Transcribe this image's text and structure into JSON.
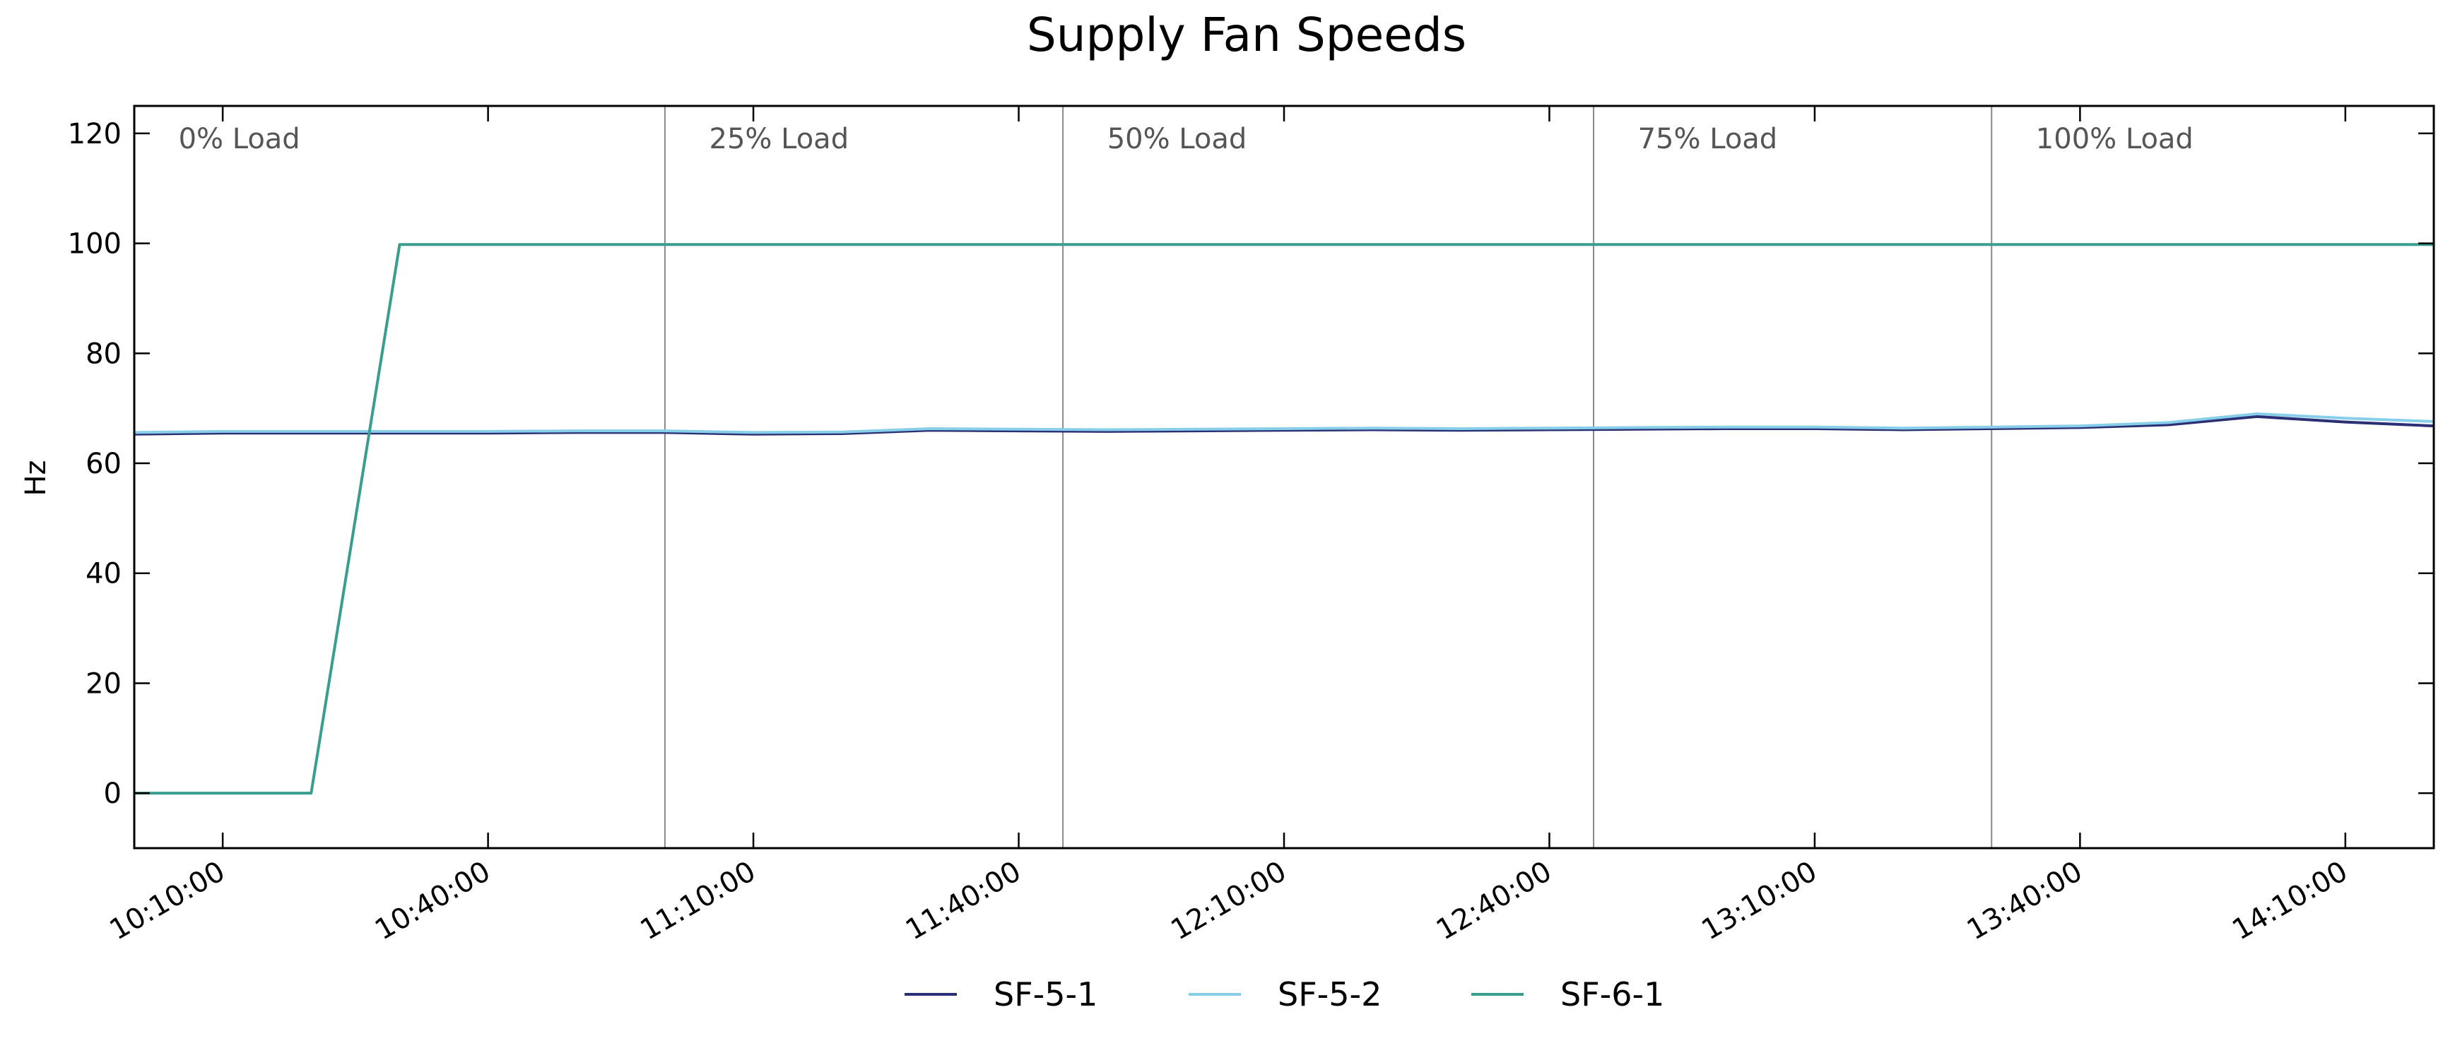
{
  "chart_data": {
    "type": "line",
    "title": "Supply Fan Speeds",
    "xlabel": "",
    "ylabel": "Hz",
    "x_tick_labels": [
      "10:10:00",
      "10:40:00",
      "11:10:00",
      "11:40:00",
      "12:10:00",
      "12:40:00",
      "13:10:00",
      "13:40:00",
      "14:10:00"
    ],
    "xlim": [
      "10:00:00",
      "14:20:00"
    ],
    "ylim": [
      -10,
      125
    ],
    "y_ticks": [
      0,
      20,
      40,
      60,
      80,
      100,
      120
    ],
    "grid": false,
    "legend_position": "bottom-center",
    "load_dividers": [
      "11:00:00",
      "11:45:00",
      "12:45:00",
      "13:30:00"
    ],
    "load_labels": [
      {
        "text": "0% Load",
        "x": "10:05:00"
      },
      {
        "text": "25% Load",
        "x": "11:05:00"
      },
      {
        "text": "50% Load",
        "x": "11:50:00"
      },
      {
        "text": "75% Load",
        "x": "12:50:00"
      },
      {
        "text": "100% Load",
        "x": "13:35:00"
      }
    ],
    "series": [
      {
        "name": "SF-5-1",
        "color": "#2b2f73",
        "x": [
          "10:00:00",
          "10:10:00",
          "10:20:00",
          "10:30:00",
          "10:40:00",
          "10:50:00",
          "11:00:00",
          "11:10:00",
          "11:20:00",
          "11:30:00",
          "11:40:00",
          "11:50:00",
          "12:00:00",
          "12:10:00",
          "12:20:00",
          "12:30:00",
          "12:40:00",
          "12:50:00",
          "13:00:00",
          "13:10:00",
          "13:20:00",
          "13:30:00",
          "13:40:00",
          "13:50:00",
          "14:00:00",
          "14:10:00",
          "14:20:00"
        ],
        "values": [
          65.3,
          65.5,
          65.5,
          65.5,
          65.5,
          65.6,
          65.6,
          65.3,
          65.4,
          66.0,
          65.9,
          65.8,
          65.9,
          66.0,
          66.1,
          66.0,
          66.1,
          66.2,
          66.3,
          66.3,
          66.1,
          66.3,
          66.5,
          67.0,
          68.5,
          67.5,
          66.8
        ]
      },
      {
        "name": "SF-5-2",
        "color": "#87ceeb",
        "x": [
          "10:00:00",
          "10:10:00",
          "10:20:00",
          "10:30:00",
          "10:40:00",
          "10:50:00",
          "11:00:00",
          "11:10:00",
          "11:20:00",
          "11:30:00",
          "11:40:00",
          "11:50:00",
          "12:00:00",
          "12:10:00",
          "12:20:00",
          "12:30:00",
          "12:40:00",
          "12:50:00",
          "13:00:00",
          "13:10:00",
          "13:20:00",
          "13:30:00",
          "13:40:00",
          "13:50:00",
          "14:00:00",
          "14:10:00",
          "14:20:00"
        ],
        "values": [
          65.6,
          65.8,
          65.8,
          65.8,
          65.8,
          65.9,
          65.9,
          65.6,
          65.7,
          66.3,
          66.2,
          66.1,
          66.2,
          66.3,
          66.4,
          66.3,
          66.4,
          66.5,
          66.6,
          66.6,
          66.4,
          66.6,
          66.8,
          67.4,
          69.0,
          68.2,
          67.6
        ]
      },
      {
        "name": "SF-6-1",
        "color": "#3a9e8f",
        "x": [
          "10:00:00",
          "10:20:00",
          "10:30:00",
          "10:40:00",
          "11:00:00",
          "11:30:00",
          "12:00:00",
          "12:30:00",
          "13:00:00",
          "13:30:00",
          "14:00:00",
          "14:20:00"
        ],
        "values": [
          0,
          0,
          99.8,
          99.8,
          99.8,
          99.8,
          99.8,
          99.8,
          99.8,
          99.8,
          99.8,
          99.8
        ]
      }
    ]
  }
}
